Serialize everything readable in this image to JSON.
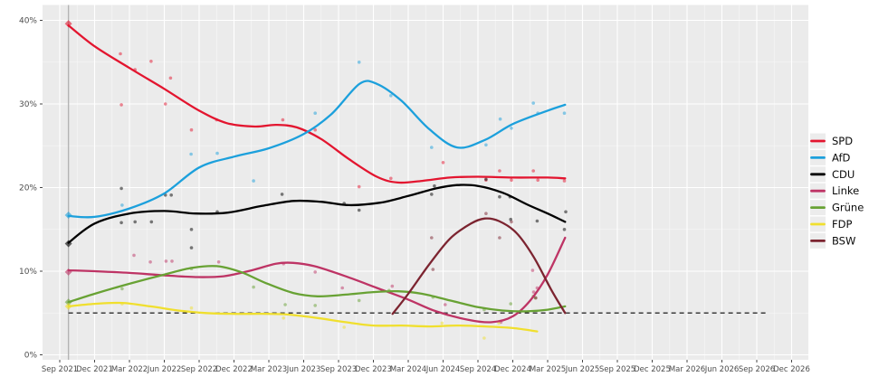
{
  "legend": {
    "items": [
      {
        "label": "SPD",
        "color": "#E3152F"
      },
      {
        "label": "AfD",
        "color": "#1CA0DC"
      },
      {
        "label": "CDU",
        "color": "#000000"
      },
      {
        "label": "Linke",
        "color": "#BE3465"
      },
      {
        "label": "Grüne",
        "color": "#68A234"
      },
      {
        "label": "FDP",
        "color": "#F0DF2E"
      },
      {
        "label": "BSW",
        "color": "#7C2430"
      }
    ]
  },
  "chart_data": {
    "type": "line",
    "title": "",
    "xlabel": "",
    "ylabel": "",
    "grid": true,
    "panel_bg": "#EBEBEB",
    "legend_position": "right",
    "x_axis": {
      "tick_labels": [
        "Sep 2021",
        "Dec 2021",
        "Mar 2022",
        "Jun 2022",
        "Sep 2022",
        "Dec 2022",
        "Mar 2023",
        "Jun 2023",
        "Sep 2023",
        "Dec 2023",
        "Mar 2024",
        "Jun 2024",
        "Sep 2024",
        "Dec 2024",
        "Mar 2025",
        "Jun 2025",
        "Sep 2025",
        "Dec 2025",
        "Mar 2026",
        "Jun 2026",
        "Sep 2026",
        "Dec 2026"
      ],
      "unit": "quarter-index"
    },
    "y_axis": {
      "tick_labels": [
        "0%",
        "10%",
        "20%",
        "30%",
        "40%"
      ],
      "tick_values": [
        0,
        10,
        20,
        30,
        40
      ],
      "minor_values": [
        5,
        15,
        25,
        35
      ],
      "range": [
        0,
        40
      ]
    },
    "threshold_line": {
      "value": 5,
      "style": "dashed",
      "color": "#3C3C3C",
      "x_start_q": 0.25,
      "x_end_q": 20.3
    },
    "election_line": {
      "x_q": 0.25,
      "color": "#B4B4B4"
    },
    "series": [
      {
        "name": "SPD",
        "color": "#E3152F",
        "election_result": 39.6,
        "trend": [
          [
            0.25,
            39.4
          ],
          [
            1,
            36.9
          ],
          [
            2,
            34.3
          ],
          [
            3,
            31.8
          ],
          [
            4,
            29.2
          ],
          [
            4.8,
            27.7
          ],
          [
            5.6,
            27.3
          ],
          [
            6.2,
            27.5
          ],
          [
            6.8,
            27.2
          ],
          [
            7.5,
            25.8
          ],
          [
            8.3,
            23.4
          ],
          [
            9.1,
            21.3
          ],
          [
            9.7,
            20.6
          ],
          [
            10.4,
            20.8
          ],
          [
            11.2,
            21.2
          ],
          [
            12,
            21.3
          ],
          [
            13,
            21.2
          ],
          [
            14,
            21.2
          ],
          [
            14.5,
            21.1
          ]
        ],
        "polls": [
          [
            1.74,
            36.0
          ],
          [
            2.16,
            34.1
          ],
          [
            2.62,
            35.1
          ],
          [
            3.18,
            33.1
          ],
          [
            1.77,
            29.9
          ],
          [
            3.03,
            30.0
          ],
          [
            3.78,
            26.9
          ],
          [
            4.5,
            28.1
          ],
          [
            6.4,
            28.1
          ],
          [
            7.33,
            26.9
          ],
          [
            8.59,
            20.1
          ],
          [
            9.5,
            21.1
          ],
          [
            11.0,
            23.0
          ],
          [
            12.23,
            20.9
          ],
          [
            12.62,
            22.0
          ],
          [
            12.96,
            20.9
          ],
          [
            13.59,
            22.0
          ],
          [
            13.72,
            20.9
          ],
          [
            14.48,
            20.8
          ]
        ]
      },
      {
        "name": "AfD",
        "color": "#1CA0DC",
        "election_result": 16.7,
        "trend": [
          [
            0.25,
            16.6
          ],
          [
            1,
            16.5
          ],
          [
            2,
            17.5
          ],
          [
            3,
            19.3
          ],
          [
            4,
            22.4
          ],
          [
            5,
            23.7
          ],
          [
            6,
            24.7
          ],
          [
            7,
            26.4
          ],
          [
            7.8,
            28.8
          ],
          [
            8.6,
            32.4
          ],
          [
            9.1,
            32.4
          ],
          [
            9.8,
            30.4
          ],
          [
            10.6,
            27.0
          ],
          [
            11.4,
            24.8
          ],
          [
            12.2,
            25.7
          ],
          [
            13,
            27.6
          ],
          [
            14,
            29.2
          ],
          [
            14.5,
            29.9
          ]
        ],
        "polls": [
          [
            1.79,
            17.9
          ],
          [
            3.77,
            24.0
          ],
          [
            4.52,
            24.1
          ],
          [
            5.56,
            20.8
          ],
          [
            7.33,
            28.9
          ],
          [
            8.59,
            35.0
          ],
          [
            9.5,
            31.0
          ],
          [
            10.67,
            24.8
          ],
          [
            12.23,
            25.1
          ],
          [
            12.64,
            28.2
          ],
          [
            12.96,
            27.1
          ],
          [
            13.59,
            30.1
          ],
          [
            13.72,
            28.9
          ],
          [
            14.48,
            28.9
          ]
        ]
      },
      {
        "name": "CDU",
        "color": "#000000",
        "election_result": 13.3,
        "trend": [
          [
            0.25,
            13.4
          ],
          [
            1,
            15.7
          ],
          [
            2,
            16.9
          ],
          [
            3,
            17.2
          ],
          [
            3.9,
            16.9
          ],
          [
            4.8,
            17.0
          ],
          [
            5.8,
            17.8
          ],
          [
            6.7,
            18.4
          ],
          [
            7.5,
            18.3
          ],
          [
            8.3,
            17.9
          ],
          [
            9.2,
            18.2
          ],
          [
            10,
            19.0
          ],
          [
            10.8,
            19.9
          ],
          [
            11.4,
            20.3
          ],
          [
            12,
            20.2
          ],
          [
            12.7,
            19.4
          ],
          [
            13.4,
            18.0
          ],
          [
            14,
            16.9
          ],
          [
            14.5,
            15.9
          ]
        ],
        "polls": [
          [
            1.77,
            19.9
          ],
          [
            1.77,
            15.8
          ],
          [
            2.16,
            15.9
          ],
          [
            2.63,
            15.9
          ],
          [
            3.03,
            19.1
          ],
          [
            3.2,
            19.1
          ],
          [
            3.78,
            15.0
          ],
          [
            3.78,
            12.8
          ],
          [
            4.52,
            17.1
          ],
          [
            6.38,
            19.2
          ],
          [
            8.16,
            18.1
          ],
          [
            8.59,
            17.3
          ],
          [
            10.75,
            20.2
          ],
          [
            10.67,
            19.2
          ],
          [
            12.23,
            21.0
          ],
          [
            12.62,
            18.9
          ],
          [
            12.92,
            18.9
          ],
          [
            12.94,
            16.2
          ],
          [
            13.7,
            16.0
          ],
          [
            14.52,
            17.1
          ],
          [
            14.48,
            15.0
          ]
        ]
      },
      {
        "name": "Linke",
        "color": "#BE3465",
        "election_result": 9.9,
        "trend": [
          [
            0.25,
            10.1
          ],
          [
            1,
            10.0
          ],
          [
            2,
            9.8
          ],
          [
            3,
            9.5
          ],
          [
            3.9,
            9.3
          ],
          [
            4.7,
            9.4
          ],
          [
            5.5,
            10.1
          ],
          [
            6.2,
            10.9
          ],
          [
            6.7,
            11.0
          ],
          [
            7.3,
            10.6
          ],
          [
            8.2,
            9.4
          ],
          [
            9.1,
            8.0
          ],
          [
            10,
            6.6
          ],
          [
            10.8,
            5.2
          ],
          [
            11.7,
            4.2
          ],
          [
            12.4,
            3.9
          ],
          [
            13,
            4.6
          ],
          [
            13.5,
            6.5
          ],
          [
            14,
            9.6
          ],
          [
            14.5,
            14.0
          ]
        ],
        "polls": [
          [
            2.13,
            11.9
          ],
          [
            2.6,
            11.1
          ],
          [
            3.05,
            11.2
          ],
          [
            3.22,
            11.2
          ],
          [
            4.56,
            11.1
          ],
          [
            6.42,
            10.9
          ],
          [
            7.33,
            9.9
          ],
          [
            8.11,
            8.0
          ],
          [
            9.54,
            8.2
          ],
          [
            11.06,
            6.0
          ],
          [
            12.66,
            3.9
          ],
          [
            13.57,
            10.1
          ],
          [
            13.6,
            7.5
          ],
          [
            13.7,
            8.0
          ]
        ]
      },
      {
        "name": "Grüne",
        "color": "#68A234",
        "election_result": 6.3,
        "trend": [
          [
            0.25,
            6.3
          ],
          [
            1,
            7.3
          ],
          [
            2,
            8.5
          ],
          [
            3,
            9.6
          ],
          [
            3.8,
            10.4
          ],
          [
            4.5,
            10.6
          ],
          [
            5.2,
            9.9
          ],
          [
            5.9,
            8.6
          ],
          [
            6.7,
            7.4
          ],
          [
            7.4,
            7.0
          ],
          [
            8.2,
            7.2
          ],
          [
            9,
            7.5
          ],
          [
            9.7,
            7.6
          ],
          [
            10.4,
            7.3
          ],
          [
            11.2,
            6.5
          ],
          [
            12,
            5.7
          ],
          [
            12.7,
            5.3
          ],
          [
            13.4,
            5.2
          ],
          [
            14,
            5.4
          ],
          [
            14.5,
            5.8
          ]
        ],
        "polls": [
          [
            1.79,
            7.9
          ],
          [
            3.78,
            10.3
          ],
          [
            5.56,
            8.1
          ],
          [
            6.47,
            6.0
          ],
          [
            7.33,
            5.9
          ],
          [
            8.59,
            6.5
          ],
          [
            9.45,
            7.7
          ],
          [
            10.71,
            6.9
          ],
          [
            12.18,
            5.4
          ],
          [
            12.94,
            6.1
          ],
          [
            13.59,
            7.0
          ],
          [
            13.65,
            6.8
          ]
        ]
      },
      {
        "name": "FDP",
        "color": "#F0DF2E",
        "election_result": 5.8,
        "trend": [
          [
            0.25,
            5.8
          ],
          [
            1,
            6.1
          ],
          [
            1.8,
            6.2
          ],
          [
            2.6,
            5.8
          ],
          [
            3.4,
            5.3
          ],
          [
            4.2,
            5.0
          ],
          [
            5,
            4.9
          ],
          [
            6,
            4.9
          ],
          [
            6.6,
            4.8
          ],
          [
            7.4,
            4.4
          ],
          [
            8.2,
            3.9
          ],
          [
            9,
            3.5
          ],
          [
            9.8,
            3.5
          ],
          [
            10.6,
            3.4
          ],
          [
            11.4,
            3.5
          ],
          [
            12.2,
            3.4
          ],
          [
            13,
            3.2
          ],
          [
            13.7,
            2.8
          ]
        ],
        "polls": [
          [
            1.79,
            6.1
          ],
          [
            3.78,
            5.6
          ],
          [
            6.42,
            4.4
          ],
          [
            8.16,
            3.3
          ],
          [
            10.97,
            3.8
          ],
          [
            12.18,
            2.0
          ],
          [
            12.6,
            3.8
          ]
        ]
      },
      {
        "name": "BSW",
        "color": "#7C2430",
        "election_result": null,
        "trend": [
          [
            9.55,
            4.9
          ],
          [
            10,
            7.3
          ],
          [
            10.6,
            10.8
          ],
          [
            11.2,
            13.9
          ],
          [
            11.8,
            15.7
          ],
          [
            12.2,
            16.3
          ],
          [
            12.6,
            16.0
          ],
          [
            13.1,
            14.6
          ],
          [
            13.6,
            11.7
          ],
          [
            14.1,
            7.8
          ],
          [
            14.5,
            5.0
          ]
        ],
        "polls": [
          [
            10.67,
            14.0
          ],
          [
            10.71,
            10.2
          ],
          [
            12.23,
            16.9
          ],
          [
            12.62,
            14.0
          ],
          [
            12.96,
            15.9
          ],
          [
            13.66,
            6.8
          ]
        ]
      }
    ]
  }
}
